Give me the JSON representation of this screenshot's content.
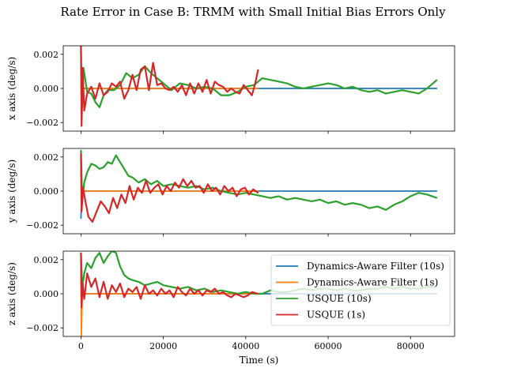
{
  "figure": {
    "title": "Rate Error in Case B: TRMM with Small Initial Bias Errors Only"
  },
  "chart_data": [
    {
      "type": "line",
      "ylabel": "x axis (deg/s)",
      "xlabel": "",
      "xlim": [
        -4300,
        90700
      ],
      "ylim": [
        -0.0025,
        0.0025
      ],
      "yticks": [
        -0.002,
        0.0,
        0.002
      ],
      "ytick_labels": [
        "−0.002",
        "0.000",
        "0.002"
      ],
      "xticks": [
        0,
        20000,
        40000,
        60000,
        80000
      ],
      "xtick_labels": [],
      "series": [
        {
          "name": "Dynamics-Aware Filter (10s)",
          "color": "#1f77b4",
          "x": [
            0,
            300,
            1000,
            43000,
            86400
          ],
          "y": [
            0.0,
            0.0,
            0.0,
            0.0,
            0.0
          ]
        },
        {
          "name": "Dynamics-Aware Filter (1s)",
          "color": "#ff7f0e",
          "x": [
            0,
            150,
            500,
            2000,
            43000
          ],
          "y": [
            0.0015,
            0.0,
            0.0,
            0.0,
            0.0
          ]
        },
        {
          "name": "USQUE (10s)",
          "color": "#2ca02c",
          "x": [
            0,
            200,
            600,
            1500,
            2500,
            3500,
            4500,
            5500,
            6500,
            8000,
            9500,
            11000,
            12500,
            14000,
            15500,
            17000,
            18500,
            20000,
            22000,
            24000,
            26000,
            28000,
            30000,
            32000,
            34000,
            36000,
            38000,
            40000,
            42000,
            44000,
            46000,
            48000,
            50000,
            52000,
            54000,
            56000,
            58000,
            60000,
            62000,
            64000,
            66000,
            68000,
            70000,
            72000,
            74000,
            76000,
            78000,
            80000,
            82000,
            84000,
            86400
          ],
          "y": [
            0.0025,
            -0.0015,
            0.0012,
            -0.0002,
            -0.0003,
            -0.0008,
            -0.0011,
            -0.0004,
            -0.0001,
            -0.0001,
            0.0002,
            0.0009,
            0.0006,
            0.0008,
            0.0013,
            0.0009,
            0.0006,
            0.0003,
            -0.0001,
            0.0003,
            0.0002,
            0.0,
            0.0001,
            0.0,
            -0.0004,
            -0.0004,
            -0.0002,
            0.0001,
            0.0002,
            0.0006,
            0.0005,
            0.0004,
            0.0003,
            0.0001,
            0.0,
            0.0001,
            0.0002,
            0.0003,
            0.0002,
            0.0,
            0.0001,
            -0.0001,
            -0.0002,
            -0.0001,
            -0.0003,
            -0.0002,
            -0.0001,
            -0.0002,
            -0.0003,
            0.0,
            0.0005
          ]
        },
        {
          "name": "USQUE (1s)",
          "color": "#d62728",
          "x": [
            0,
            150,
            400,
            800,
            1500,
            2500,
            3500,
            4500,
            5500,
            6500,
            7500,
            8500,
            9500,
            10500,
            11500,
            12500,
            13500,
            14500,
            15500,
            16500,
            17500,
            18500,
            19500,
            20500,
            21500,
            22500,
            23500,
            24500,
            25500,
            26500,
            27500,
            28500,
            29500,
            30500,
            31500,
            32500,
            33500,
            34500,
            35500,
            36500,
            37500,
            38500,
            39500,
            40500,
            41500,
            42300,
            43000
          ],
          "y": [
            0.0025,
            -0.0022,
            0.0012,
            -0.0013,
            -0.0003,
            0.0001,
            -0.0006,
            0.0003,
            -0.0004,
            -0.0002,
            0.0003,
            0.0001,
            0.0004,
            -0.0006,
            -0.0001,
            0.0008,
            -0.0001,
            0.0011,
            0.0013,
            -0.0001,
            0.0015,
            0.0002,
            0.0003,
            0.0,
            -0.0001,
            0.0001,
            -0.0002,
            0.0002,
            -0.0004,
            0.0003,
            -0.0003,
            0.0003,
            -0.0002,
            0.0005,
            -0.0003,
            0.0004,
            0.0002,
            0.0001,
            -0.0002,
            0.0,
            -0.0002,
            -0.0003,
            0.0002,
            -0.0001,
            -0.0004,
            0.0003,
            0.0011
          ]
        }
      ]
    },
    {
      "type": "line",
      "ylabel": "y axis (deg/s)",
      "xlabel": "",
      "xlim": [
        -4300,
        90700
      ],
      "ylim": [
        -0.0025,
        0.0025
      ],
      "yticks": [
        -0.002,
        0.0,
        0.002
      ],
      "ytick_labels": [
        "−0.002",
        "0.000",
        "0.002"
      ],
      "xticks": [
        0,
        20000,
        40000,
        60000,
        80000
      ],
      "xtick_labels": [],
      "series": [
        {
          "name": "Dynamics-Aware Filter (10s)",
          "color": "#1f77b4",
          "x": [
            0,
            200,
            600,
            43000,
            86400
          ],
          "y": [
            -0.0016,
            0.0,
            0.0,
            0.0,
            0.0
          ]
        },
        {
          "name": "Dynamics-Aware Filter (1s)",
          "color": "#ff7f0e",
          "x": [
            0,
            150,
            500,
            2000,
            43000
          ],
          "y": [
            0.0012,
            0.0,
            0.0,
            0.0,
            0.0
          ]
        },
        {
          "name": "USQUE (10s)",
          "color": "#2ca02c",
          "x": [
            0,
            300,
            800,
            1500,
            2500,
            3500,
            4500,
            5500,
            6500,
            7500,
            8500,
            9500,
            10500,
            11500,
            12500,
            14000,
            15500,
            17000,
            18500,
            20000,
            22000,
            24000,
            26000,
            28000,
            30000,
            32000,
            34000,
            36000,
            38000,
            40000,
            42000,
            44000,
            46000,
            48000,
            50000,
            52000,
            54000,
            56000,
            58000,
            60000,
            62000,
            64000,
            66000,
            68000,
            70000,
            72000,
            74000,
            76000,
            78000,
            80000,
            82000,
            84000,
            86400
          ],
          "y": [
            0.0024,
            -0.0005,
            0.0005,
            0.0011,
            0.0016,
            0.0015,
            0.0013,
            0.0014,
            0.0017,
            0.0016,
            0.0021,
            0.0017,
            0.0013,
            0.0009,
            0.0008,
            0.0005,
            0.0007,
            0.0004,
            0.0006,
            0.0003,
            0.0004,
            0.0003,
            0.0002,
            0.0003,
            0.0001,
            0.0002,
            0.0,
            -0.0001,
            -0.0002,
            -0.0001,
            -0.0002,
            -0.0003,
            -0.0004,
            -0.0003,
            -0.0005,
            -0.0004,
            -0.0005,
            -0.0006,
            -0.0005,
            -0.0007,
            -0.0006,
            -0.0008,
            -0.0007,
            -0.0008,
            -0.001,
            -0.0009,
            -0.0011,
            -0.0008,
            -0.0006,
            -0.0003,
            -0.0001,
            -0.0002,
            -0.0004
          ]
        },
        {
          "name": "USQUE (1s)",
          "color": "#d62728",
          "x": [
            0,
            150,
            500,
            1000,
            1800,
            2800,
            3800,
            4800,
            5800,
            6800,
            7800,
            8800,
            9800,
            10800,
            11800,
            12800,
            13800,
            14800,
            15800,
            16800,
            17800,
            18800,
            19800,
            20800,
            21800,
            22800,
            23800,
            24800,
            25800,
            26800,
            27800,
            28800,
            29800,
            30800,
            31800,
            32800,
            33800,
            34800,
            35800,
            36800,
            37800,
            38800,
            39800,
            40800,
            41800,
            43000
          ],
          "y": [
            0.0022,
            -0.0012,
            0.0002,
            -0.0005,
            -0.0015,
            -0.0018,
            -0.0012,
            -0.0006,
            -0.0009,
            -0.0013,
            -0.0004,
            -0.001,
            -0.0002,
            -0.0007,
            0.0003,
            -0.0005,
            0.0002,
            -0.0001,
            0.0006,
            -0.0001,
            0.0002,
            0.0004,
            -0.0002,
            0.0003,
            0.0,
            0.0005,
            0.0002,
            0.0007,
            0.0003,
            0.0006,
            0.0002,
            0.0003,
            -0.0001,
            0.0004,
            0.0,
            0.0002,
            -0.0002,
            0.0003,
            0.0,
            0.0002,
            -0.0003,
            0.0001,
            0.0002,
            -0.0002,
            0.0001,
            -0.0001
          ]
        }
      ]
    },
    {
      "type": "line",
      "ylabel": "z axis (deg/s)",
      "xlabel": "Time (s)",
      "xlim": [
        -4300,
        90700
      ],
      "ylim": [
        -0.0025,
        0.0025
      ],
      "yticks": [
        -0.002,
        0.0,
        0.002
      ],
      "ytick_labels": [
        "−0.002",
        "0.000",
        "0.002"
      ],
      "xticks": [
        0,
        20000,
        40000,
        60000,
        80000
      ],
      "xtick_labels": [
        "0",
        "20000",
        "40000",
        "60000",
        "80000"
      ],
      "legend": "upper right",
      "series": [
        {
          "name": "Dynamics-Aware Filter (10s)",
          "color": "#1f77b4",
          "x": [
            0,
            200,
            600,
            43000,
            86400
          ],
          "y": [
            0.0018,
            0.0,
            0.0,
            0.0,
            0.0
          ]
        },
        {
          "name": "Dynamics-Aware Filter (1s)",
          "color": "#ff7f0e",
          "x": [
            0,
            100,
            300,
            800,
            2000,
            43000
          ],
          "y": [
            0.0015,
            -0.0025,
            0.0,
            0.0,
            0.0,
            0.0
          ]
        },
        {
          "name": "USQUE (10s)",
          "color": "#2ca02c",
          "x": [
            0,
            300,
            800,
            1500,
            2500,
            3500,
            4500,
            5500,
            6500,
            7500,
            8500,
            9500,
            10500,
            11500,
            12500,
            14000,
            15500,
            17000,
            18500,
            20000,
            22000,
            24000,
            26000,
            28000,
            30000,
            32000,
            34000,
            36000,
            38000,
            40000,
            42000,
            44000,
            46000,
            48000,
            50000,
            52000,
            54000,
            56000,
            58000,
            60000,
            62000,
            64000,
            66000,
            68000,
            70000,
            72000,
            74000,
            76000,
            78000,
            80000,
            82000,
            84000,
            86400
          ],
          "y": [
            0.0024,
            0.0004,
            0.0012,
            0.0018,
            0.0015,
            0.0021,
            0.0024,
            0.0018,
            0.0022,
            0.0025,
            0.0024,
            0.0016,
            0.0011,
            0.0009,
            0.0008,
            0.0007,
            0.0005,
            0.0006,
            0.0007,
            0.0005,
            0.0004,
            0.0003,
            0.0004,
            0.0002,
            0.0003,
            0.0001,
            0.0002,
            0.0001,
            0.0,
            0.0001,
            0.0,
            0.0,
            0.0002,
            0.0001,
            0.0001,
            0.0002,
            0.0003,
            0.0002,
            0.0003,
            0.0003,
            0.0002,
            0.0003,
            0.0002,
            0.0002,
            0.0003,
            0.0003,
            0.0004,
            0.0003,
            0.0004,
            0.0003,
            0.0003,
            0.0004,
            0.0004
          ]
        },
        {
          "name": "USQUE (1s)",
          "color": "#d62728",
          "x": [
            0,
            150,
            400,
            800,
            1500,
            2500,
            3500,
            4500,
            5500,
            6500,
            7500,
            8500,
            9500,
            10500,
            11500,
            12500,
            13500,
            14500,
            15500,
            16500,
            17500,
            18500,
            19500,
            20500,
            21500,
            22500,
            23500,
            24500,
            25500,
            26500,
            27500,
            28500,
            29500,
            30500,
            31500,
            32500,
            33500,
            34500,
            35500,
            36500,
            37500,
            38500,
            39500,
            40500,
            41500,
            43000
          ],
          "y": [
            0.0024,
            -0.0008,
            0.0006,
            -0.0003,
            0.0012,
            0.0004,
            0.0009,
            -0.0002,
            0.0007,
            -0.0003,
            0.0005,
            0.0001,
            0.0006,
            -0.0002,
            0.0003,
            0.0001,
            0.0004,
            -0.0003,
            0.0005,
            0.0,
            0.0002,
            -0.0001,
            0.0003,
            0.0,
            0.0002,
            -0.0002,
            0.0004,
            0.0001,
            -0.0001,
            0.0003,
            0.0,
            0.0002,
            -0.0001,
            0.0002,
            0.0001,
            0.0003,
            0.0,
            0.0001,
            -0.0001,
            -0.0002,
            0.0,
            -0.0001,
            -0.0002,
            -0.0001,
            0.0001,
            0.0
          ]
        }
      ]
    }
  ]
}
